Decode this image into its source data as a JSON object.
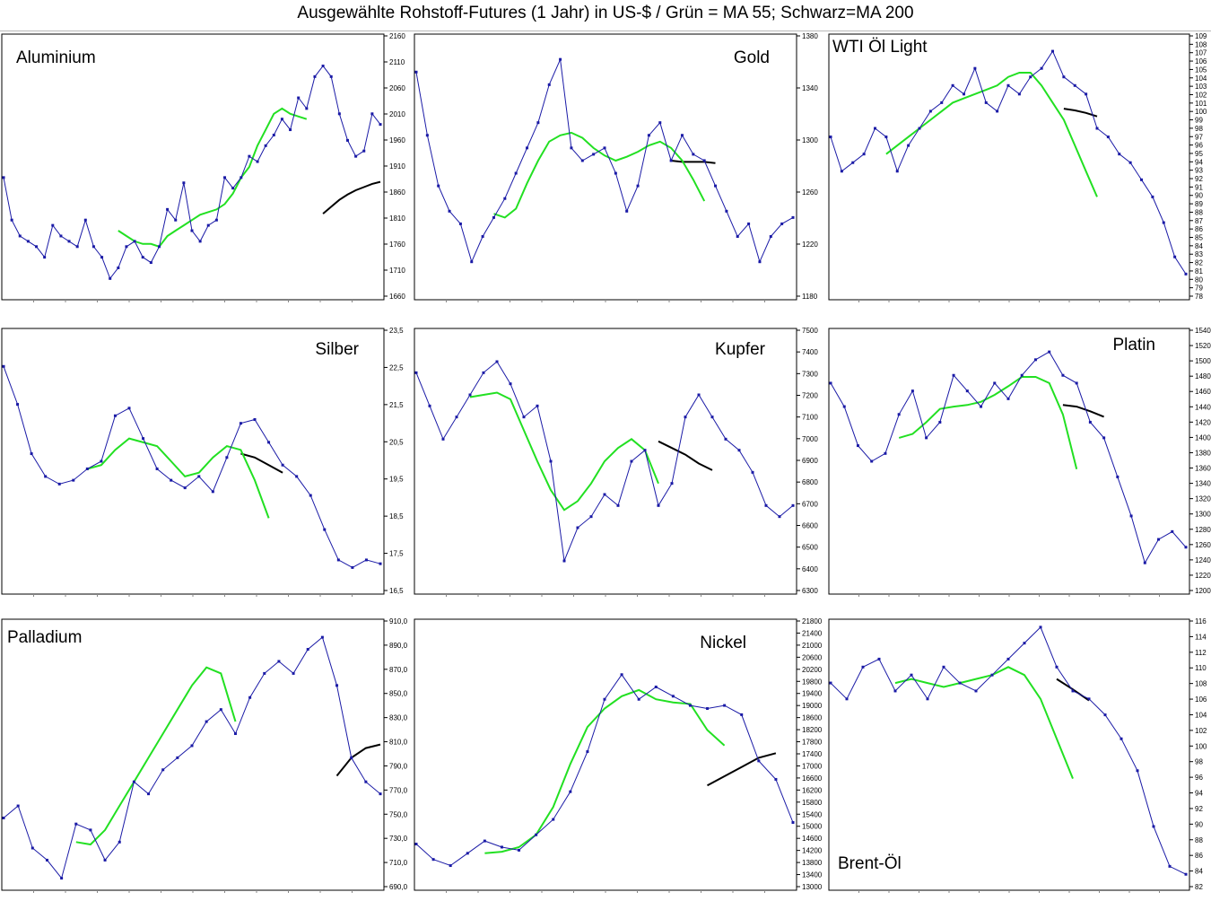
{
  "title": "Ausgewählte Rohstoff-Futures (1 Jahr) in US-$ / Grün = MA 55; Schwarz=MA 200",
  "colors": {
    "price": "#1a1aa6",
    "ma55": "#22e022",
    "ma200": "#000000"
  },
  "chart_data": [
    {
      "type": "line",
      "title": "Aluminium",
      "ylim": [
        1660,
        2160
      ],
      "yticks": [
        "2160",
        "2110",
        "2060",
        "2010",
        "1960",
        "1910",
        "1860",
        "1810",
        "1760",
        "1710",
        "1660"
      ],
      "series": [
        {
          "values": [
            1890,
            1810,
            1780,
            1770,
            1760,
            1740,
            1800,
            1780,
            1770,
            1760,
            1810,
            1760,
            1740,
            1700,
            1720,
            1760,
            1770,
            1740,
            1730,
            1760,
            1830,
            1810,
            1880,
            1790,
            1770,
            1800,
            1810,
            1890,
            1870,
            1890,
            1930,
            1920,
            1950,
            1970,
            2000,
            1980,
            2040,
            2020,
            2080,
            2100,
            2080,
            2010,
            1960,
            1930,
            1940,
            2010,
            1990
          ]
        },
        {
          "values": [
            null,
            null,
            null,
            null,
            null,
            null,
            null,
            null,
            null,
            null,
            null,
            null,
            null,
            null,
            1790,
            1780,
            1770,
            1765,
            1765,
            1760,
            1780,
            1790,
            1800,
            1810,
            1820,
            1825,
            1830,
            1840,
            1860,
            1890,
            1910,
            1950,
            1980,
            2010,
            2020,
            2010,
            2005,
            2000
          ]
        },
        {
          "values": [
            null,
            null,
            null,
            null,
            null,
            null,
            null,
            null,
            null,
            null,
            null,
            null,
            null,
            null,
            null,
            null,
            null,
            null,
            null,
            null,
            null,
            null,
            null,
            null,
            null,
            null,
            null,
            null,
            null,
            null,
            null,
            null,
            null,
            null,
            null,
            null,
            null,
            null,
            null,
            1822,
            1835,
            1848,
            1858,
            1866,
            1872,
            1878,
            1882
          ]
        }
      ]
    },
    {
      "type": "line",
      "title": "Gold",
      "ylim": [
        1180,
        1390
      ],
      "yticks": [
        "1380",
        "1340",
        "1300",
        "1260",
        "1220",
        "1180"
      ],
      "series": [
        {
          "values": [
            1360,
            1310,
            1270,
            1250,
            1240,
            1210,
            1230,
            1245,
            1260,
            1280,
            1300,
            1320,
            1350,
            1370,
            1300,
            1290,
            1295,
            1300,
            1280,
            1250,
            1270,
            1310,
            1320,
            1290,
            1310,
            1295,
            1290,
            1270,
            1250,
            1230,
            1240,
            1210,
            1230,
            1240,
            1245
          ]
        },
        {
          "values": [
            null,
            null,
            null,
            null,
            null,
            null,
            null,
            1248,
            1245,
            1252,
            1272,
            1290,
            1305,
            1310,
            1312,
            1308,
            1300,
            1294,
            1290,
            1293,
            1297,
            1302,
            1305,
            1300,
            1290,
            1275,
            1258
          ]
        },
        {
          "values": [
            null,
            null,
            null,
            null,
            null,
            null,
            null,
            null,
            null,
            null,
            null,
            null,
            null,
            null,
            null,
            null,
            null,
            null,
            null,
            null,
            null,
            null,
            null,
            1290,
            1289,
            1289,
            1289,
            1288
          ]
        }
      ]
    },
    {
      "type": "line",
      "title": "WTI Öl Light",
      "ylim": [
        78,
        109
      ],
      "yticks": [
        "109",
        "108",
        "107",
        "106",
        "105",
        "104",
        "103",
        "102",
        "101",
        "100",
        "99",
        "98",
        "97",
        "96",
        "95",
        "94",
        "93",
        "92",
        "91",
        "90",
        "89",
        "88",
        "87",
        "86",
        "85",
        "84",
        "83",
        "82",
        "81",
        "80",
        "79",
        "78"
      ],
      "series": [
        {
          "values": [
            97,
            93,
            94,
            95,
            98,
            97,
            93,
            96,
            98,
            100,
            101,
            103,
            102,
            105,
            101,
            100,
            103,
            102,
            104,
            105,
            107,
            104,
            103,
            102,
            98,
            97,
            95,
            94,
            92,
            90,
            87,
            83,
            81
          ]
        },
        {
          "values": [
            null,
            null,
            null,
            null,
            null,
            95,
            96,
            97,
            98,
            99,
            100,
            101,
            101.5,
            102,
            102.5,
            103,
            104,
            104.5,
            104.5,
            103,
            101,
            99,
            96,
            93,
            90
          ]
        },
        {
          "values": [
            null,
            null,
            null,
            null,
            null,
            null,
            null,
            null,
            null,
            null,
            null,
            null,
            null,
            null,
            null,
            null,
            null,
            null,
            null,
            null,
            null,
            100.3,
            100.1,
            99.8,
            99.4
          ]
        }
      ]
    },
    {
      "type": "line",
      "title": "Silber",
      "ylim": [
        16.5,
        23.5
      ],
      "yticks": [
        "23,5",
        "22,5",
        "21,5",
        "20,5",
        "19,5",
        "18,5",
        "17,5",
        "16,5"
      ],
      "series": [
        {
          "values": [
            22.5,
            21.5,
            20.2,
            19.6,
            19.4,
            19.5,
            19.8,
            20.0,
            21.2,
            21.4,
            20.6,
            19.8,
            19.5,
            19.3,
            19.6,
            19.2,
            20.1,
            21.0,
            21.1,
            20.5,
            19.9,
            19.6,
            19.1,
            18.2,
            17.4,
            17.2,
            17.4,
            17.3
          ]
        },
        {
          "values": [
            null,
            null,
            null,
            null,
            null,
            null,
            19.8,
            19.9,
            20.3,
            20.6,
            20.5,
            20.4,
            20.0,
            19.6,
            19.7,
            20.1,
            20.4,
            20.3,
            19.5,
            18.5
          ]
        },
        {
          "values": [
            null,
            null,
            null,
            null,
            null,
            null,
            null,
            null,
            null,
            null,
            null,
            null,
            null,
            null,
            null,
            null,
            null,
            20.2,
            20.1,
            19.9,
            19.7
          ]
        }
      ]
    },
    {
      "type": "line",
      "title": "Kupfer",
      "ylim": [
        6300,
        7500
      ],
      "yticks": [
        "7500",
        "7400",
        "7300",
        "7200",
        "7100",
        "7000",
        "6900",
        "6800",
        "6700",
        "6600",
        "6500",
        "6400",
        "6300"
      ],
      "series": [
        {
          "values": [
            7300,
            7150,
            7000,
            7100,
            7200,
            7300,
            7350,
            7250,
            7100,
            7150,
            6900,
            6450,
            6600,
            6650,
            6750,
            6700,
            6900,
            6950,
            6700,
            6800,
            7100,
            7200,
            7100,
            7000,
            6950,
            6850,
            6700,
            6650,
            6700
          ]
        },
        {
          "values": [
            null,
            null,
            null,
            null,
            7190,
            7200,
            7210,
            7180,
            7040,
            6900,
            6770,
            6680,
            6720,
            6800,
            6900,
            6960,
            7000,
            6950,
            6800
          ]
        },
        {
          "values": [
            null,
            null,
            null,
            null,
            null,
            null,
            null,
            null,
            null,
            null,
            null,
            null,
            null,
            null,
            null,
            null,
            null,
            null,
            6990,
            6960,
            6930,
            6890,
            6860
          ]
        }
      ]
    },
    {
      "type": "line",
      "title": "Platin",
      "ylim": [
        1200,
        1540
      ],
      "yticks": [
        "1540",
        "1520",
        "1500",
        "1480",
        "1460",
        "1440",
        "1420",
        "1400",
        "1380",
        "1360",
        "1340",
        "1320",
        "1300",
        "1280",
        "1260",
        "1240",
        "1220",
        "1200"
      ],
      "series": [
        {
          "values": [
            1470,
            1440,
            1390,
            1370,
            1380,
            1430,
            1460,
            1400,
            1420,
            1480,
            1460,
            1440,
            1470,
            1450,
            1480,
            1500,
            1510,
            1480,
            1470,
            1420,
            1400,
            1350,
            1300,
            1240,
            1270,
            1280,
            1260
          ]
        },
        {
          "values": [
            null,
            null,
            null,
            null,
            null,
            1400,
            1405,
            1420,
            1437,
            1440,
            1442,
            1446,
            1455,
            1466,
            1478,
            1478,
            1470,
            1430,
            1360
          ]
        },
        {
          "values": [
            null,
            null,
            null,
            null,
            null,
            null,
            null,
            null,
            null,
            null,
            null,
            null,
            null,
            null,
            null,
            null,
            null,
            1442,
            1440,
            1434,
            1427
          ]
        }
      ]
    },
    {
      "type": "line",
      "title": "Palladium",
      "ylim": [
        690,
        915
      ],
      "yticks": [
        "910,0",
        "890,0",
        "870,0",
        "850,0",
        "830,0",
        "810,0",
        "790,0",
        "770,0",
        "750,0",
        "730,0",
        "710,0",
        "690,0"
      ],
      "series": [
        {
          "values": [
            750,
            760,
            725,
            715,
            700,
            745,
            740,
            715,
            730,
            780,
            770,
            790,
            800,
            810,
            830,
            840,
            820,
            850,
            870,
            880,
            870,
            890,
            900,
            860,
            800,
            780,
            770
          ]
        },
        {
          "values": [
            null,
            null,
            null,
            null,
            null,
            730,
            728,
            740,
            760,
            780,
            800,
            820,
            840,
            860,
            875,
            870,
            830
          ]
        },
        {
          "values": [
            null,
            null,
            null,
            null,
            null,
            null,
            null,
            null,
            null,
            null,
            null,
            null,
            null,
            null,
            null,
            null,
            null,
            null,
            null,
            null,
            null,
            null,
            null,
            785,
            800,
            808,
            811
          ]
        }
      ]
    },
    {
      "type": "line",
      "title": "Nickel",
      "ylim": [
        13000,
        21800
      ],
      "yticks": [
        "21800",
        "21400",
        "21000",
        "20600",
        "20200",
        "19800",
        "19400",
        "19000",
        "18600",
        "18200",
        "17800",
        "17400",
        "17000",
        "16600",
        "16200",
        "15800",
        "15400",
        "15000",
        "14600",
        "14200",
        "13800",
        "13400",
        "13000"
      ],
      "series": [
        {
          "values": [
            14500,
            14000,
            13800,
            14200,
            14600,
            14400,
            14300,
            14800,
            15300,
            16200,
            17500,
            19200,
            20000,
            19200,
            19600,
            19300,
            19000,
            18900,
            19000,
            18700,
            17200,
            16600,
            15200
          ]
        },
        {
          "values": [
            null,
            null,
            null,
            null,
            14200,
            14250,
            14400,
            14800,
            15700,
            17100,
            18300,
            18900,
            19300,
            19500,
            19200,
            19100,
            19050,
            18200,
            17700
          ]
        },
        {
          "values": [
            null,
            null,
            null,
            null,
            null,
            null,
            null,
            null,
            null,
            null,
            null,
            null,
            null,
            null,
            null,
            null,
            null,
            16400,
            16700,
            17000,
            17300,
            17450
          ]
        }
      ]
    },
    {
      "type": "line",
      "title": "Brent-Öl",
      "ylim": [
        82,
        116
      ],
      "yticks": [
        "116",
        "114",
        "112",
        "110",
        "108",
        "106",
        "104",
        "102",
        "100",
        "98",
        "96",
        "94",
        "92",
        "90",
        "88",
        "86",
        "84",
        "82"
      ],
      "series": [
        {
          "values": [
            108,
            106,
            110,
            111,
            107,
            109,
            106,
            110,
            108,
            107,
            109,
            111,
            113,
            115,
            110,
            107,
            106,
            104,
            101,
            97,
            90,
            85,
            84
          ]
        },
        {
          "values": [
            null,
            null,
            null,
            null,
            108,
            108.5,
            108,
            107.5,
            108,
            108.5,
            109,
            110,
            109,
            106,
            101,
            96
          ]
        },
        {
          "values": [
            null,
            null,
            null,
            null,
            null,
            null,
            null,
            null,
            null,
            null,
            null,
            null,
            null,
            null,
            108.5,
            107.2,
            105.8
          ]
        }
      ]
    }
  ]
}
